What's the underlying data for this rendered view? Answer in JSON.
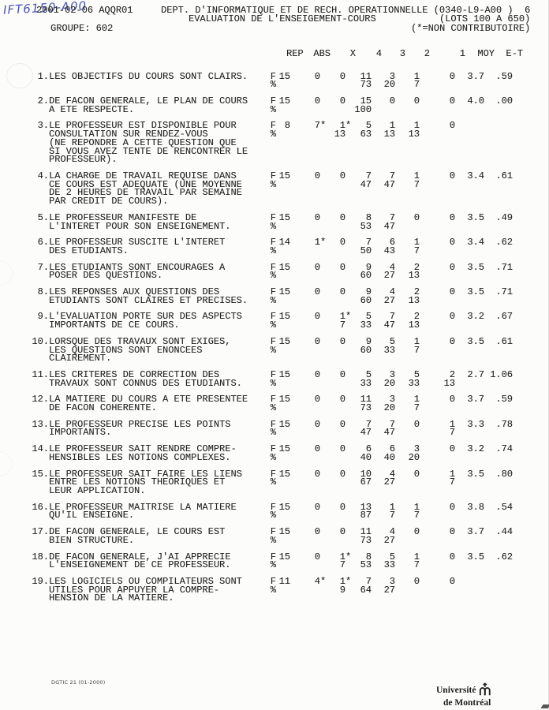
{
  "annotation": "IFT6150-A00",
  "header": {
    "date": "2001-02-06",
    "report_code": "AQQR01",
    "dept_line": "DEPT. D'INFORMATIQUE ET DE RECH. OPERATIONNELLE (0340-L9-A00 )",
    "page_number": "6",
    "title": "EVALUATION DE L'ENSEIGEMENT-COURS",
    "lots": "(LOTS 100 A 650)",
    "group_label": "GROUPE: 602",
    "legend_note": "(*=NON CONTRIBUTOIRE)"
  },
  "table": {
    "columns": [
      "REP",
      "ABS",
      "X",
      "4",
      "3",
      "2",
      "1",
      "MOY",
      "E-T"
    ],
    "row_labels": {
      "freq": "F",
      "pct": "%"
    },
    "questions": [
      {
        "no": "1.",
        "text": "LES OBJECTIFS DU COURS SONT CLAIRS.",
        "f": [
          "15",
          "0",
          "0",
          "11",
          "3",
          "1",
          "0",
          "3.7",
          ".59"
        ],
        "p": [
          "",
          "",
          "",
          "73",
          "20",
          "7",
          "",
          "",
          ""
        ]
      },
      {
        "no": "2.",
        "text": "DE FACON GENERALE, LE PLAN DE COURS\nA ETE RESPECTE.",
        "f": [
          "15",
          "0",
          "0",
          "15",
          "0",
          "0",
          "0",
          "4.0",
          ".00"
        ],
        "p": [
          "",
          "",
          "",
          "100",
          "",
          "",
          "",
          "",
          ""
        ]
      },
      {
        "no": "3.",
        "text": "LE PROFESSEUR EST DISPONIBLE POUR\nCONSULTATION SUR RENDEZ-VOUS\n(NE REPONDRE A CETTE QUESTION QUE\nSI VOUS AVEZ TENTE DE RENCONTRER LE\nPROFESSEUR).",
        "f": [
          "8",
          "7*",
          "1*",
          "5",
          "1",
          "1",
          "0",
          "",
          ""
        ],
        "p": [
          "",
          "",
          "13",
          "63",
          "13",
          "13",
          "",
          "",
          ""
        ]
      },
      {
        "no": "4.",
        "text": "LA CHARGE DE TRAVAIL REQUISE DANS\nCE COURS EST ADEQUATE (UNE MOYENNE\nDE 2 HEURES DE TRAVAIL PAR SEMAINE\nPAR CREDIT DE COURS).",
        "f": [
          "15",
          "0",
          "0",
          "7",
          "7",
          "1",
          "0",
          "3.4",
          ".61"
        ],
        "p": [
          "",
          "",
          "",
          "47",
          "47",
          "7",
          "",
          "",
          ""
        ]
      },
      {
        "no": "5.",
        "text": "LE PROFESSEUR MANIFESTE DE\nL'INTERET POUR SON ENSEIGNEMENT.",
        "f": [
          "15",
          "0",
          "0",
          "8",
          "7",
          "0",
          "0",
          "3.5",
          ".49"
        ],
        "p": [
          "",
          "",
          "",
          "53",
          "47",
          "",
          "",
          "",
          ""
        ]
      },
      {
        "no": "6.",
        "text": "LE PROFESSEUR SUSCITE L'INTERET\nDES ETUDIANTS.",
        "f": [
          "14",
          "1*",
          "0",
          "7",
          "6",
          "1",
          "0",
          "3.4",
          ".62"
        ],
        "p": [
          "",
          "",
          "",
          "50",
          "43",
          "7",
          "",
          "",
          ""
        ]
      },
      {
        "no": "7.",
        "text": "LES ETUDIANTS SONT ENCOURAGES A\nPOSER DES QUESTIONS.",
        "f": [
          "15",
          "0",
          "0",
          "9",
          "4",
          "2",
          "0",
          "3.5",
          ".71"
        ],
        "p": [
          "",
          "",
          "",
          "60",
          "27",
          "13",
          "",
          "",
          ""
        ]
      },
      {
        "no": "8.",
        "text": "LES REPONSES AUX QUESTIONS DES\nETUDIANTS SONT CLAIRES ET PRECISES.",
        "f": [
          "15",
          "0",
          "0",
          "9",
          "4",
          "2",
          "0",
          "3.5",
          ".71"
        ],
        "p": [
          "",
          "",
          "",
          "60",
          "27",
          "13",
          "",
          "",
          ""
        ]
      },
      {
        "no": "9.",
        "text": "L'EVALUATION PORTE SUR DES ASPECTS\nIMPORTANTS DE CE COURS.",
        "f": [
          "15",
          "0",
          "1*",
          "5",
          "7",
          "2",
          "0",
          "3.2",
          ".67"
        ],
        "p": [
          "",
          "",
          "7",
          "33",
          "47",
          "13",
          "",
          "",
          ""
        ]
      },
      {
        "no": "10.",
        "text": "LORSQUE DES TRAVAUX SONT EXIGES,\nLES QUESTIONS SONT ENONCEES\nCLAIREMENT.",
        "f": [
          "15",
          "0",
          "0",
          "9",
          "5",
          "1",
          "0",
          "3.5",
          ".61"
        ],
        "p": [
          "",
          "",
          "",
          "60",
          "33",
          "7",
          "",
          "",
          ""
        ]
      },
      {
        "no": "11.",
        "text": "LES CRITERES DE CORRECTION DES\nTRAVAUX SONT CONNUS DES ETUDIANTS.",
        "f": [
          "15",
          "0",
          "0",
          "5",
          "3",
          "5",
          "2",
          "2.7",
          "1.06"
        ],
        "p": [
          "",
          "",
          "",
          "33",
          "20",
          "33",
          "13",
          "",
          ""
        ]
      },
      {
        "no": "12.",
        "text": "LA MATIERE DU COURS A ETE PRESENTEE\nDE FACON COHERENTE.",
        "f": [
          "15",
          "0",
          "0",
          "11",
          "3",
          "1",
          "0",
          "3.7",
          ".59"
        ],
        "p": [
          "",
          "",
          "",
          "73",
          "20",
          "7",
          "",
          "",
          ""
        ]
      },
      {
        "no": "13.",
        "text": "LE PROFESSEUR PRECISE LES POINTS\nIMPORTANTS.",
        "f": [
          "15",
          "0",
          "0",
          "7",
          "7",
          "0",
          "1",
          "3.3",
          ".78"
        ],
        "p": [
          "",
          "",
          "",
          "47",
          "47",
          "",
          "7",
          "",
          ""
        ]
      },
      {
        "no": "14.",
        "text": "LE PROFESSEUR SAIT RENDRE COMPRE-\nHENSIBLES LES NOTIONS COMPLEXES.",
        "f": [
          "15",
          "0",
          "0",
          "6",
          "6",
          "3",
          "0",
          "3.2",
          ".74"
        ],
        "p": [
          "",
          "",
          "",
          "40",
          "40",
          "20",
          "",
          "",
          ""
        ]
      },
      {
        "no": "15.",
        "text": "LE PROFESSEUR SAIT FAIRE LES LIENS\nENTRE LES NOTIONS THEORIQUES ET\nLEUR APPLICATION.",
        "f": [
          "15",
          "0",
          "0",
          "10",
          "4",
          "0",
          "1",
          "3.5",
          ".80"
        ],
        "p": [
          "",
          "",
          "",
          "67",
          "27",
          "",
          "7",
          "",
          ""
        ]
      },
      {
        "no": "16.",
        "text": "LE PROFESSEUR MAITRISE LA MATIERE\nQU'IL ENSEIGNE.",
        "f": [
          "15",
          "0",
          "0",
          "13",
          "1",
          "1",
          "0",
          "3.8",
          ".54"
        ],
        "p": [
          "",
          "",
          "",
          "87",
          "7",
          "7",
          "",
          "",
          ""
        ]
      },
      {
        "no": "17.",
        "text": "DE FACON GENERALE, LE COURS EST\nBIEN STRUCTURE.",
        "f": [
          "15",
          "0",
          "0",
          "11",
          "4",
          "0",
          "0",
          "3.7",
          ".44"
        ],
        "p": [
          "",
          "",
          "",
          "73",
          "27",
          "",
          "",
          "",
          ""
        ]
      },
      {
        "no": "18.",
        "text": "DE FACON GENERALE, J'AI APPRECIE\nL'ENSEIGNEMENT DE CE PROFESSEUR.",
        "f": [
          "15",
          "0",
          "1*",
          "8",
          "5",
          "1",
          "0",
          "3.5",
          ".62"
        ],
        "p": [
          "",
          "",
          "7",
          "53",
          "33",
          "7",
          "",
          "",
          ""
        ]
      },
      {
        "no": "19.",
        "text": "LES LOGICIELS OU COMPILATEURS SONT\nUTILES POUR APPUYER LA COMPRE-\nHENSION DE LA MATIERE.",
        "f": [
          "11",
          "4*",
          "1*",
          "7",
          "3",
          "0",
          "0",
          "",
          ""
        ],
        "p": [
          "",
          "",
          "9",
          "64",
          "27",
          "",
          "",
          "",
          ""
        ]
      }
    ]
  },
  "footer": {
    "form_code": "DGTIC 21 (01-2000)",
    "logo_line1": "Université",
    "logo_line2": "de Montréal"
  }
}
